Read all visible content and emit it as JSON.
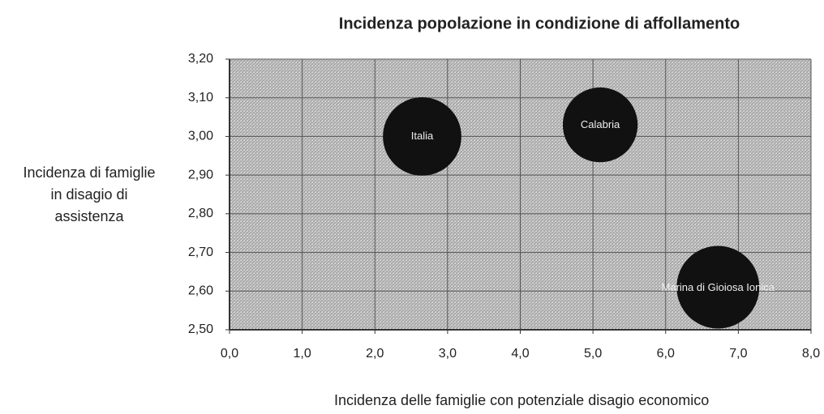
{
  "chart_data": {
    "type": "bubble",
    "title": "Incidenza popolazione in condizione di affollamento",
    "x_label": "Incidenza delle famiglie con potenziale disagio economico",
    "y_label": "Incidenza di famiglie in disagio di assistenza",
    "labels": [
      "Italia",
      "Calabria",
      "Marina di Gioiosa Ionica"
    ],
    "x": [
      2.65,
      5.1,
      6.72
    ],
    "y": [
      3.0,
      3.03,
      2.61
    ],
    "sizes": [
      0.9,
      0.82,
      1.0
    ],
    "color": "#111111",
    "xlim": [
      0,
      8
    ],
    "xticks": [
      {
        "value": 0,
        "label": "0,0"
      },
      {
        "value": 1,
        "label": "1,0"
      },
      {
        "value": 2,
        "label": "2,0"
      },
      {
        "value": 3,
        "label": "3,0"
      },
      {
        "value": 4,
        "label": "4,0"
      },
      {
        "value": 5,
        "label": "5,0"
      },
      {
        "value": 6,
        "label": "6,0"
      },
      {
        "value": 7,
        "label": "7,0"
      },
      {
        "value": 8,
        "label": "8,0"
      }
    ],
    "ylim": [
      2.5,
      3.2
    ],
    "yticks": [
      {
        "value": 2.5,
        "label": "2,50"
      },
      {
        "value": 2.6,
        "label": "2,60"
      },
      {
        "value": 2.7,
        "label": "2,70"
      },
      {
        "value": 2.8,
        "label": "2,80"
      },
      {
        "value": 2.9,
        "label": "2,90"
      },
      {
        "value": 3.0,
        "label": "3,00"
      },
      {
        "value": 3.1,
        "label": "3,10"
      },
      {
        "value": 3.2,
        "label": "3,20"
      }
    ],
    "grid": true
  }
}
